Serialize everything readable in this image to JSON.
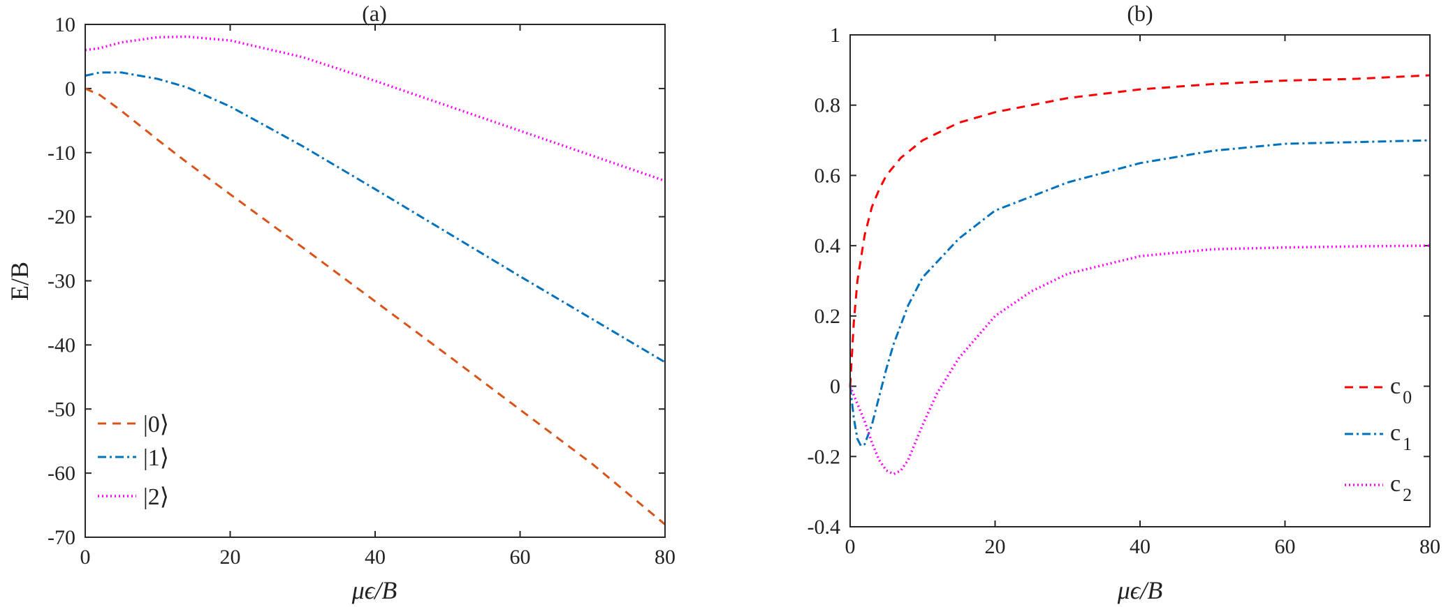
{
  "colors": {
    "orange": "#D95319",
    "blue": "#0072BD",
    "magenta": "#FF00FF",
    "red": "#FF0000",
    "axis": "#262626"
  },
  "chart_data": [
    {
      "type": "line",
      "title": "(a)",
      "xlabel": "μϵ/B",
      "ylabel": "E/B",
      "xlim": [
        0,
        80
      ],
      "ylim": [
        -70,
        10
      ],
      "xticks": [
        0,
        20,
        40,
        60,
        80
      ],
      "yticks": [
        10,
        0,
        -10,
        -20,
        -30,
        -40,
        -50,
        -60,
        -70
      ],
      "x": [
        0,
        2,
        5,
        10,
        14,
        20,
        30,
        40,
        50,
        60,
        70,
        80
      ],
      "legend_position": "bottom-left",
      "series": [
        {
          "name": "|0⟩",
          "color": "#D95319",
          "dash": "dashed",
          "values": [
            0,
            -1,
            -3.5,
            -8,
            -11.5,
            -16.5,
            -24.8,
            -33.2,
            -41.6,
            -50.1,
            -58.6,
            -68
          ]
        },
        {
          "name": "|1⟩",
          "color": "#0072BD",
          "dash": "dashdot",
          "values": [
            2,
            2.5,
            2.5,
            1.5,
            0.2,
            -2.8,
            -9,
            -15.7,
            -22.5,
            -29.3,
            -36,
            -42.7
          ]
        },
        {
          "name": "|2⟩",
          "color": "#FF00FF",
          "dash": "dotted",
          "values": [
            6,
            6.3,
            7.2,
            8,
            8.1,
            7.5,
            4.9,
            1.2,
            -2.7,
            -6.6,
            -10.5,
            -14.4
          ]
        }
      ]
    },
    {
      "type": "line",
      "title": "(b)",
      "xlabel": "μϵ/B",
      "ylabel": "",
      "xlim": [
        0,
        80
      ],
      "ylim": [
        -0.4,
        1
      ],
      "xticks": [
        0,
        20,
        40,
        60,
        80
      ],
      "yticks": [
        1,
        0.8,
        0.6,
        0.4,
        0.2,
        0,
        -0.2,
        -0.4
      ],
      "ytick_labels": [
        "1",
        "0.8",
        "0.6",
        "0.4",
        "0.2",
        "0",
        "-0.2",
        "-0.4"
      ],
      "legend_position": "bottom-right",
      "series": [
        {
          "name": "c0",
          "label_base": "c",
          "label_sub": "0",
          "color": "#FF0000",
          "dash": "dashed",
          "x": [
            0,
            0.5,
            1,
            2,
            3,
            4,
            5,
            7,
            10,
            15,
            20,
            30,
            40,
            50,
            60,
            70,
            80
          ],
          "values": [
            0,
            0.18,
            0.3,
            0.43,
            0.51,
            0.56,
            0.6,
            0.65,
            0.7,
            0.75,
            0.78,
            0.82,
            0.845,
            0.86,
            0.87,
            0.875,
            0.885
          ]
        },
        {
          "name": "c1",
          "label_base": "c",
          "label_sub": "1",
          "color": "#0072BD",
          "dash": "dashdot",
          "x": [
            0,
            0.5,
            1,
            1.5,
            2,
            3,
            4,
            5,
            6,
            8,
            10,
            15,
            20,
            30,
            40,
            50,
            60,
            70,
            80
          ],
          "values": [
            0,
            -0.09,
            -0.15,
            -0.17,
            -0.165,
            -0.11,
            -0.03,
            0.05,
            0.12,
            0.23,
            0.31,
            0.42,
            0.5,
            0.58,
            0.635,
            0.67,
            0.69,
            0.695,
            0.7
          ]
        },
        {
          "name": "c2",
          "label_base": "c",
          "label_sub": "2",
          "color": "#FF00FF",
          "dash": "dotted",
          "x": [
            0,
            1,
            2,
            3,
            4,
            5,
            6,
            7,
            8,
            9,
            10,
            12,
            15,
            20,
            25,
            30,
            40,
            50,
            60,
            70,
            80
          ],
          "values": [
            0,
            -0.05,
            -0.1,
            -0.16,
            -0.21,
            -0.24,
            -0.25,
            -0.24,
            -0.21,
            -0.16,
            -0.11,
            -0.02,
            0.08,
            0.2,
            0.27,
            0.32,
            0.37,
            0.39,
            0.395,
            0.398,
            0.4
          ]
        }
      ]
    }
  ]
}
